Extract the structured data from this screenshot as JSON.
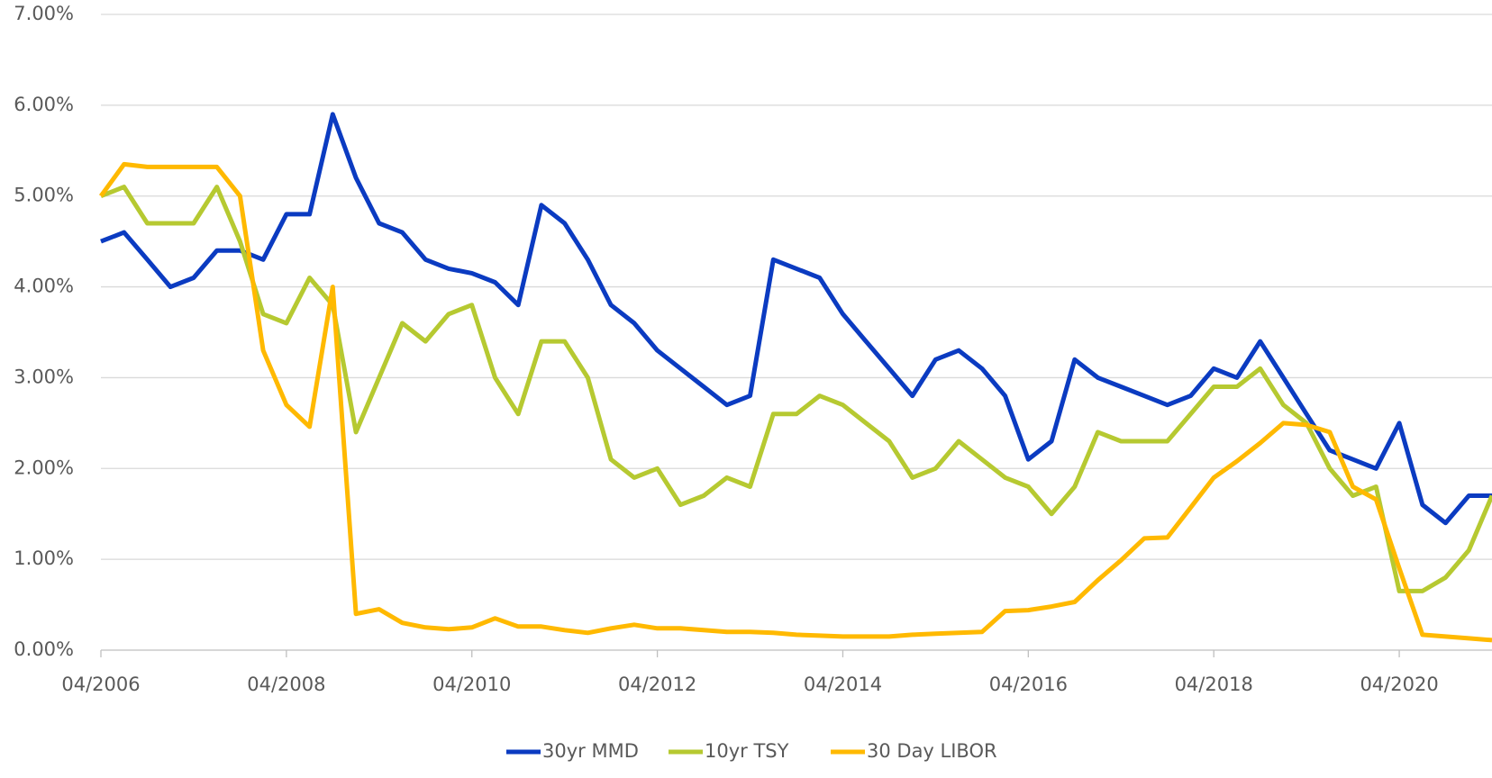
{
  "chart_data": {
    "type": "line",
    "x": [
      "2006-04",
      "2006-07",
      "2006-10",
      "2007-01",
      "2007-04",
      "2007-07",
      "2007-10",
      "2008-01",
      "2008-04",
      "2008-07",
      "2008-10",
      "2009-01",
      "2009-04",
      "2009-07",
      "2009-10",
      "2010-01",
      "2010-04",
      "2010-07",
      "2010-10",
      "2011-01",
      "2011-04",
      "2011-07",
      "2011-10",
      "2012-01",
      "2012-04",
      "2012-07",
      "2012-10",
      "2013-01",
      "2013-04",
      "2013-07",
      "2013-10",
      "2014-01",
      "2014-04",
      "2014-07",
      "2014-10",
      "2015-01",
      "2015-04",
      "2015-07",
      "2015-10",
      "2016-01",
      "2016-04",
      "2016-07",
      "2016-10",
      "2017-01",
      "2017-04",
      "2017-07",
      "2017-10",
      "2018-01",
      "2018-04",
      "2018-07",
      "2018-10",
      "2019-01",
      "2019-04",
      "2019-07",
      "2019-10",
      "2020-01",
      "2020-04",
      "2020-07",
      "2020-10",
      "2021-01",
      "2021-04"
    ],
    "series": [
      {
        "name": "30yr MMD",
        "color": "#0b3bc1",
        "values": [
          4.5,
          4.6,
          4.3,
          4.0,
          4.1,
          4.4,
          4.4,
          4.3,
          4.8,
          4.8,
          5.9,
          5.2,
          4.7,
          4.6,
          4.3,
          4.2,
          4.15,
          4.05,
          3.8,
          4.9,
          4.7,
          4.3,
          3.8,
          3.6,
          3.3,
          3.1,
          2.9,
          2.7,
          2.8,
          4.3,
          4.2,
          4.1,
          3.7,
          3.4,
          3.1,
          2.8,
          3.2,
          3.3,
          3.1,
          2.8,
          2.1,
          2.3,
          3.2,
          3.0,
          2.9,
          2.8,
          2.7,
          2.8,
          3.1,
          3.0,
          3.4,
          3.0,
          2.6,
          2.2,
          2.1,
          2.0,
          2.5,
          1.6,
          1.4,
          1.7,
          1.7
        ]
      },
      {
        "name": "10yr TSY",
        "color": "#b6c931",
        "values": [
          5.0,
          5.1,
          4.7,
          4.7,
          4.7,
          5.1,
          4.5,
          3.7,
          3.6,
          4.1,
          3.8,
          2.4,
          3.0,
          3.6,
          3.4,
          3.7,
          3.8,
          3.0,
          2.6,
          3.4,
          3.4,
          3.0,
          2.1,
          1.9,
          2.0,
          1.6,
          1.7,
          1.9,
          1.8,
          2.6,
          2.6,
          2.8,
          2.7,
          2.5,
          2.3,
          1.9,
          2.0,
          2.3,
          2.1,
          1.9,
          1.8,
          1.5,
          1.8,
          2.4,
          2.3,
          2.3,
          2.3,
          2.6,
          2.9,
          2.9,
          3.1,
          2.7,
          2.5,
          2.0,
          1.7,
          1.8,
          0.65,
          0.65,
          0.8,
          1.1,
          1.7
        ]
      },
      {
        "name": "30 Day LIBOR",
        "color": "#ffb900",
        "values": [
          5.0,
          5.35,
          5.32,
          5.32,
          5.32,
          5.32,
          5.0,
          3.3,
          2.7,
          2.46,
          4.0,
          0.4,
          0.45,
          0.3,
          0.25,
          0.23,
          0.25,
          0.35,
          0.26,
          0.26,
          0.22,
          0.19,
          0.24,
          0.28,
          0.24,
          0.24,
          0.22,
          0.2,
          0.2,
          0.19,
          0.17,
          0.16,
          0.15,
          0.15,
          0.15,
          0.17,
          0.18,
          0.19,
          0.2,
          0.43,
          0.44,
          0.48,
          0.53,
          0.77,
          0.99,
          1.23,
          1.24,
          1.57,
          1.9,
          2.08,
          2.28,
          2.5,
          2.48,
          2.4,
          1.8,
          1.66,
          0.9,
          0.17,
          0.15,
          0.13,
          0.11
        ]
      }
    ],
    "xlim": [
      "2006-04",
      "2021-04"
    ],
    "xticks": [
      {
        "value": "2006-04",
        "label": "04/2006"
      },
      {
        "value": "2008-04",
        "label": "04/2008"
      },
      {
        "value": "2010-04",
        "label": "04/2010"
      },
      {
        "value": "2012-04",
        "label": "04/2012"
      },
      {
        "value": "2014-04",
        "label": "04/2014"
      },
      {
        "value": "2016-04",
        "label": "04/2016"
      },
      {
        "value": "2018-04",
        "label": "04/2018"
      },
      {
        "value": "2020-04",
        "label": "04/2020"
      }
    ],
    "ylim": [
      0,
      7
    ],
    "yticks": [
      {
        "value": 0,
        "label": "0.00%"
      },
      {
        "value": 1,
        "label": "1.00%"
      },
      {
        "value": 2,
        "label": "2.00%"
      },
      {
        "value": 3,
        "label": "3.00%"
      },
      {
        "value": 4,
        "label": "4.00%"
      },
      {
        "value": 5,
        "label": "5.00%"
      },
      {
        "value": 6,
        "label": "6.00%"
      },
      {
        "value": 7,
        "label": "7.00%"
      }
    ],
    "grid": true,
    "legend": "bottom"
  }
}
